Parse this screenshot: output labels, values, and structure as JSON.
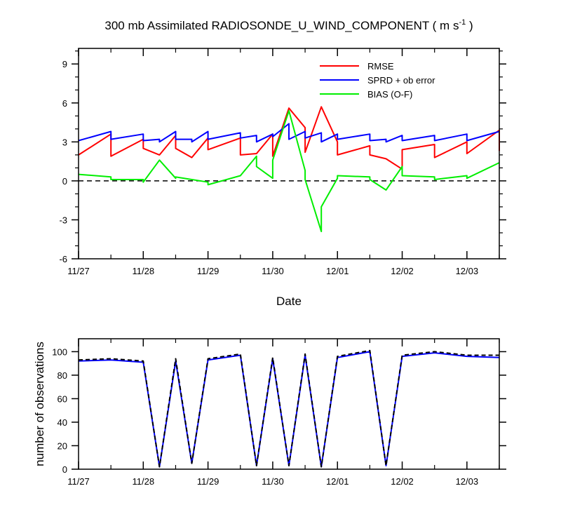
{
  "chart_data": [
    {
      "type": "line",
      "title": "300 mb Assimilated RADIOSONDE_U_WIND_COMPONENT ( m s",
      "title_unit_superscript": "-1",
      "title_suffix": " )",
      "xlabel": "Date",
      "ylabel": "",
      "xlim": [
        0,
        6.5
      ],
      "ylim": [
        -6,
        10.2
      ],
      "yticks": [
        -6,
        -3,
        0,
        3,
        6,
        9
      ],
      "xtick_values": [
        0,
        1,
        2,
        3,
        4,
        5,
        6
      ],
      "xtick_labels": [
        "11/27",
        "11/28",
        "11/29",
        "11/30",
        "12/01",
        "12/02",
        "12/03"
      ],
      "zero_line": "dashed",
      "grid": false,
      "legend_position": "top-right",
      "series": [
        {
          "name": "RMSE",
          "color": "#ff0000",
          "x": [
            0,
            0.5,
            0.5,
            1,
            1,
            1.25,
            1.5,
            1.5,
            1.75,
            2,
            2,
            2.5,
            2.5,
            2.75,
            3,
            3,
            3.25,
            3.5,
            3.5,
            3.75,
            4,
            4,
            4.5,
            4.5,
            4.75,
            5,
            5,
            5.5,
            5.5,
            6,
            6,
            6.5,
            6.5
          ],
          "y": [
            2.0,
            3.6,
            1.9,
            3.2,
            2.5,
            2.0,
            3.5,
            2.5,
            1.8,
            3.3,
            2.4,
            3.3,
            2.0,
            2.1,
            3.6,
            1.9,
            5.6,
            4.1,
            2.2,
            5.7,
            3.0,
            2.0,
            2.7,
            2.0,
            1.7,
            0.9,
            2.4,
            2.8,
            1.8,
            3.0,
            2.1,
            3.9,
            2.3
          ]
        },
        {
          "name": "SPRD + ob error",
          "color": "#0000ff",
          "x": [
            0,
            0.5,
            0.5,
            1,
            1,
            1.25,
            1.25,
            1.5,
            1.5,
            1.75,
            1.75,
            2,
            2,
            2.5,
            2.5,
            2.75,
            2.75,
            3,
            3,
            3.25,
            3.25,
            3.5,
            3.5,
            3.75,
            3.75,
            4,
            4,
            4.5,
            4.5,
            4.75,
            4.75,
            5,
            5,
            5.5,
            5.5,
            6,
            6,
            6.5
          ],
          "y": [
            3.1,
            3.8,
            3.2,
            3.6,
            3.1,
            3.2,
            3.0,
            3.8,
            3.2,
            3.2,
            3.0,
            3.8,
            3.2,
            3.7,
            3.3,
            3.5,
            3.0,
            3.6,
            3.4,
            4.4,
            3.2,
            3.8,
            3.3,
            3.7,
            3.0,
            3.6,
            3.2,
            3.6,
            3.1,
            3.2,
            3.0,
            3.5,
            3.1,
            3.5,
            3.1,
            3.6,
            3.1,
            3.8
          ]
        },
        {
          "name": "BIAS (O-F)",
          "color": "#00ee00",
          "x": [
            0,
            0.5,
            0.5,
            1,
            1,
            1.25,
            1.5,
            1.5,
            2,
            2,
            2.5,
            2.75,
            2.75,
            3,
            3,
            3.25,
            3.5,
            3.5,
            3.75,
            3.75,
            4,
            4,
            4.5,
            4.5,
            4.75,
            5,
            5,
            5.5,
            5.5,
            6,
            6,
            6.5
          ],
          "y": [
            0.5,
            0.3,
            0.1,
            0.1,
            -0.1,
            1.6,
            0.2,
            0.3,
            -0.1,
            -0.3,
            0.4,
            1.9,
            1.1,
            0.2,
            1.6,
            5.4,
            0.8,
            0.1,
            -3.9,
            -2.0,
            0.2,
            0.4,
            0.3,
            0.1,
            -0.7,
            1.1,
            0.4,
            0.3,
            0.1,
            0.4,
            0.2,
            1.4
          ]
        }
      ]
    },
    {
      "type": "line",
      "title": "",
      "xlabel": "",
      "ylabel": "number of observations",
      "xlim": [
        0,
        6.5
      ],
      "ylim": [
        0,
        111
      ],
      "yticks": [
        0,
        20,
        40,
        60,
        80,
        100
      ],
      "xtick_values": [
        0,
        1,
        2,
        3,
        4,
        5,
        6
      ],
      "xtick_labels": [
        "11/27",
        "11/28",
        "11/29",
        "11/30",
        "12/01",
        "12/02",
        "12/03"
      ],
      "grid": false,
      "series": [
        {
          "style": "solid",
          "color": "#0000ff",
          "x": [
            0,
            0.5,
            1,
            1.25,
            1.5,
            1.75,
            2,
            2.5,
            2.75,
            3,
            3.25,
            3.5,
            3.75,
            4,
            4.5,
            4.75,
            5,
            5.5,
            6,
            6.5
          ],
          "y": [
            92,
            93,
            91,
            2,
            92,
            5,
            93,
            97,
            3,
            94,
            3,
            97,
            2,
            95,
            100,
            3,
            96,
            99,
            96,
            95
          ]
        },
        {
          "style": "dashed",
          "color": "#000000",
          "x": [
            0,
            0.5,
            1,
            1.25,
            1.5,
            1.75,
            2,
            2.5,
            2.75,
            3,
            3.25,
            3.5,
            3.75,
            4,
            4.5,
            4.75,
            5,
            5.5,
            6,
            6.5
          ],
          "y": [
            93,
            94,
            92,
            2,
            94,
            5,
            94,
            98,
            3,
            95,
            3,
            98,
            2,
            96,
            101,
            3,
            97,
            100,
            97,
            97
          ]
        }
      ]
    }
  ]
}
